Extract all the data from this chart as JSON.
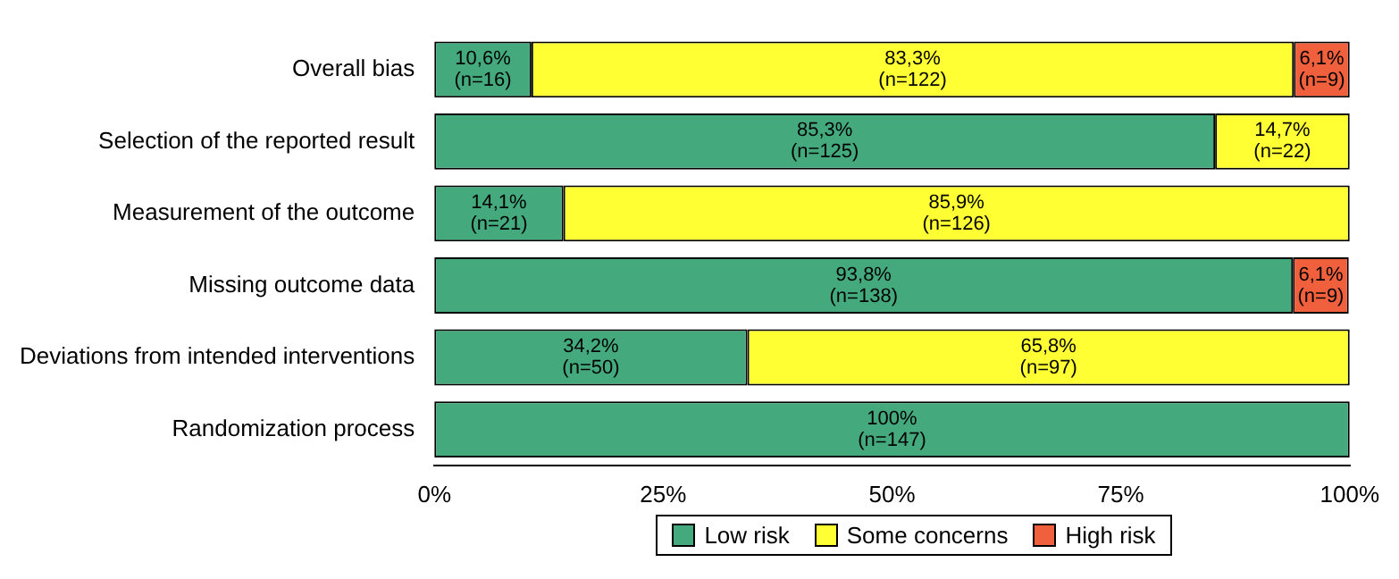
{
  "chart_data": {
    "type": "bar",
    "orientation": "horizontal",
    "stacked": true,
    "categories": [
      "Overall bias",
      "Selection of the reported result",
      "Measurement of the outcome",
      "Missing outcome data",
      "Deviations from intended interventions",
      "Randomization process"
    ],
    "series": [
      {
        "name": "Low risk",
        "color": "#44aa7e",
        "values": [
          10.6,
          85.3,
          14.1,
          93.8,
          34.2,
          100
        ],
        "value_labels": [
          "10,6%\n(n=16)",
          "85,3%\n(n=125)",
          "14,1%\n(n=21)",
          "93,8%\n(n=138)",
          "34,2%\n(n=50)",
          "100%\n(n=147)"
        ]
      },
      {
        "name": "Some concerns",
        "color": "#ffff33",
        "values": [
          83.3,
          14.7,
          85.9,
          null,
          65.8,
          null
        ],
        "value_labels": [
          "83,3%\n(n=122)",
          "14,7%\n(n=22)",
          "85,9%\n(n=126)",
          null,
          "65,8%\n(n=97)",
          null
        ]
      },
      {
        "name": "High risk",
        "color": "#f0603c",
        "values": [
          6.1,
          null,
          null,
          6.1,
          null,
          null
        ],
        "value_labels": [
          "6,1%\n(n=9)",
          null,
          null,
          "6,1%\n(n=9)",
          null,
          null
        ]
      }
    ],
    "xlim": [
      0,
      100
    ],
    "xticks": [
      {
        "value": 0,
        "label": "0%"
      },
      {
        "value": 25,
        "label": "25%"
      },
      {
        "value": 50,
        "label": "50%"
      },
      {
        "value": 75,
        "label": "75%"
      },
      {
        "value": 100,
        "label": "100%"
      }
    ],
    "grid": false,
    "legend": "bottom"
  }
}
